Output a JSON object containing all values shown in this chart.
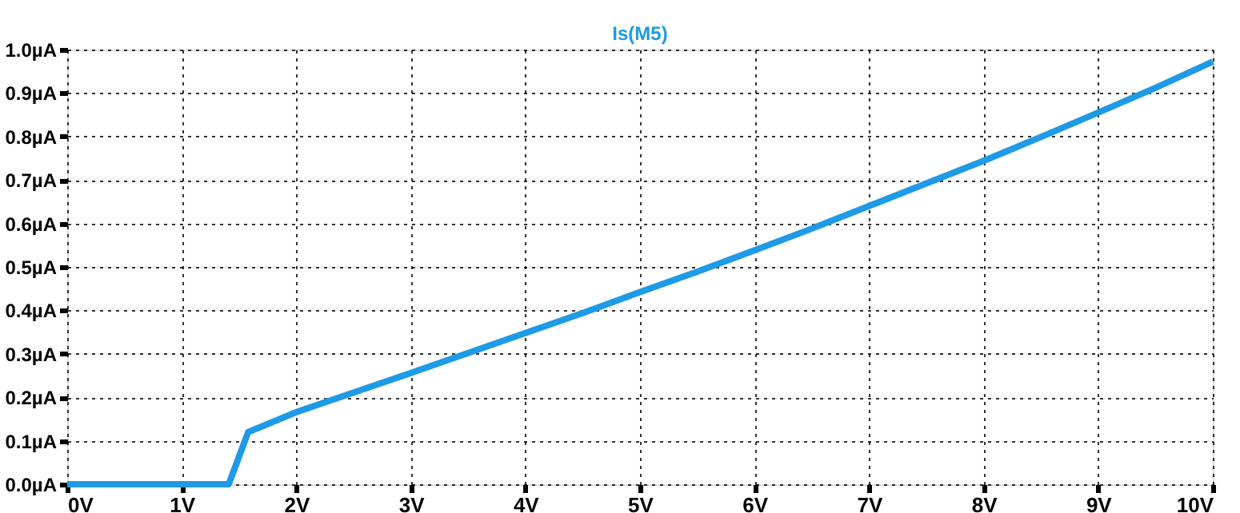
{
  "chart_data": {
    "type": "line",
    "x": [
      0,
      1.41,
      1.58,
      2,
      2.5,
      3,
      3.5,
      4,
      4.5,
      5,
      5.5,
      6,
      6.5,
      7,
      7.5,
      8,
      8.5,
      9,
      9.5,
      10
    ],
    "series": [
      {
        "name": "Is(M5)",
        "color": "#1e9ae6",
        "values": [
          0,
          0,
          0.12,
          0.166,
          0.211,
          0.256,
          0.302,
          0.348,
          0.394,
          0.442,
          0.489,
          0.538,
          0.588,
          0.64,
          0.692,
          0.744,
          0.799,
          0.855,
          0.912,
          0.972
        ]
      }
    ],
    "xlim": [
      0,
      10
    ],
    "xticks": [
      {
        "value": 0,
        "label": "0V"
      },
      {
        "value": 1,
        "label": "1V"
      },
      {
        "value": 2,
        "label": "2V"
      },
      {
        "value": 3,
        "label": "3V"
      },
      {
        "value": 4,
        "label": "4V"
      },
      {
        "value": 5,
        "label": "5V"
      },
      {
        "value": 6,
        "label": "6V"
      },
      {
        "value": 7,
        "label": "7V"
      },
      {
        "value": 8,
        "label": "8V"
      },
      {
        "value": 9,
        "label": "9V"
      },
      {
        "value": 10,
        "label": "10V"
      }
    ],
    "ylim": [
      0,
      1.0
    ],
    "yticks": [
      {
        "value": 0,
        "label": "0.0µA"
      },
      {
        "value": 0.1,
        "label": "0.1µA"
      },
      {
        "value": 0.2,
        "label": "0.2µA"
      },
      {
        "value": 0.3,
        "label": "0.3µA"
      },
      {
        "value": 0.4,
        "label": "0.4µA"
      },
      {
        "value": 0.5,
        "label": "0.5µA"
      },
      {
        "value": 0.6,
        "label": "0.6µA"
      },
      {
        "value": 0.7,
        "label": "0.7µA"
      },
      {
        "value": 0.8,
        "label": "0.8µA"
      },
      {
        "value": 0.9,
        "label": "0.9µA"
      },
      {
        "value": 1.0,
        "label": "1.0µA"
      }
    ],
    "grid": true,
    "line_style": "solid",
    "marker": "none"
  }
}
